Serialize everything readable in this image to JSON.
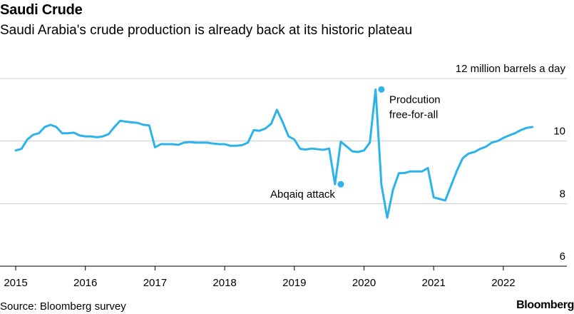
{
  "header": {
    "title": "Saudi Crude",
    "subtitle": "Saudi Arabia's crude production is already back at its historic plateau"
  },
  "footer": {
    "source": "Source: Bloomberg survey",
    "brand": "Bloomberg"
  },
  "colors": {
    "line": "#2bb3ea",
    "grid": "#cccccc",
    "axis": "#000000"
  },
  "chart_data": {
    "type": "line",
    "title": "Saudi Crude",
    "subtitle": "Saudi Arabia's crude production is already back at its historic plateau",
    "ylabel": "12 million barrels a day",
    "ylim": [
      6,
      12
    ],
    "yticks": [
      {
        "value": 12,
        "label": "12 million barrels a day"
      },
      {
        "value": 10,
        "label": "10"
      },
      {
        "value": 8,
        "label": "8"
      },
      {
        "value": 6,
        "label": "6"
      }
    ],
    "xticks": [
      "2015",
      "2016",
      "2017",
      "2018",
      "2019",
      "2020",
      "2021",
      "2022"
    ],
    "grid": true,
    "series": [
      {
        "x": [
          "2015-01",
          "2015-02",
          "2015-03",
          "2015-04",
          "2015-05",
          "2015-06",
          "2015-07",
          "2015-08",
          "2015-09",
          "2015-10",
          "2015-11",
          "2015-12",
          "2016-01",
          "2016-02",
          "2016-03",
          "2016-04",
          "2016-05",
          "2016-06",
          "2016-07",
          "2016-08",
          "2016-09",
          "2016-10",
          "2016-11",
          "2016-12",
          "2017-01",
          "2017-02",
          "2017-03",
          "2017-04",
          "2017-05",
          "2017-06",
          "2017-07",
          "2017-08",
          "2017-09",
          "2017-10",
          "2017-11",
          "2017-12",
          "2018-01",
          "2018-02",
          "2018-03",
          "2018-04",
          "2018-05",
          "2018-06",
          "2018-07",
          "2018-08",
          "2018-09",
          "2018-10",
          "2018-11",
          "2018-12",
          "2019-01",
          "2019-02",
          "2019-03",
          "2019-04",
          "2019-05",
          "2019-06",
          "2019-07",
          "2019-08",
          "2019-09",
          "2019-10",
          "2019-11",
          "2019-12",
          "2020-01",
          "2020-02",
          "2020-03",
          "2020-04",
          "2020-05",
          "2020-06",
          "2020-07",
          "2020-08",
          "2020-09",
          "2020-10",
          "2020-11",
          "2020-12",
          "2021-01",
          "2021-02",
          "2021-03",
          "2021-04",
          "2021-05",
          "2021-06",
          "2021-07",
          "2021-08",
          "2021-09",
          "2021-10",
          "2021-11",
          "2021-12",
          "2022-01",
          "2022-02",
          "2022-03",
          "2022-04",
          "2022-05",
          "2022-06"
        ],
        "values": [
          9.7,
          9.75,
          10.05,
          10.2,
          10.25,
          10.45,
          10.52,
          10.45,
          10.25,
          10.25,
          10.27,
          10.18,
          10.15,
          10.15,
          10.12,
          10.15,
          10.22,
          10.45,
          10.65,
          10.62,
          10.6,
          10.58,
          10.52,
          10.5,
          9.8,
          9.9,
          9.9,
          9.9,
          9.88,
          9.95,
          9.97,
          9.95,
          9.95,
          9.95,
          9.92,
          9.9,
          9.9,
          9.85,
          9.85,
          9.87,
          9.95,
          10.35,
          10.33,
          10.4,
          10.55,
          11.0,
          10.6,
          10.15,
          10.05,
          9.75,
          9.73,
          9.76,
          9.74,
          9.72,
          9.76,
          8.62,
          9.98,
          9.83,
          9.67,
          9.65,
          9.7,
          9.95,
          11.65,
          8.6,
          7.55,
          8.45,
          8.97,
          8.98,
          9.03,
          9.03,
          9.03,
          9.14,
          8.2,
          8.15,
          8.1,
          8.58,
          9.05,
          9.45,
          9.6,
          9.65,
          9.75,
          9.82,
          9.95,
          10.0,
          10.1,
          10.18,
          10.25,
          10.35,
          10.42,
          10.45
        ]
      }
    ],
    "annotations": [
      {
        "label": "Abqaiq attack",
        "x": "2019-09",
        "y": 8.62
      },
      {
        "label_lines": [
          "Prodcution",
          "free-for-all"
        ],
        "x": "2020-04",
        "y": 11.65
      }
    ]
  }
}
